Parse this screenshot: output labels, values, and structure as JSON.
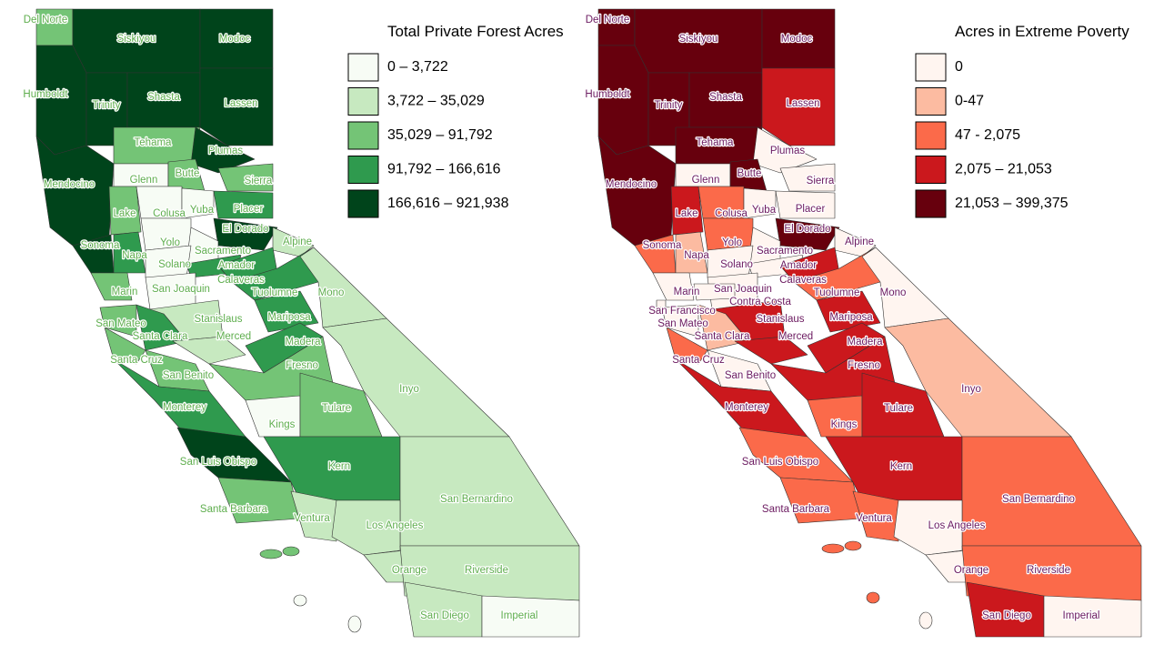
{
  "maps": [
    {
      "legend": {
        "title": "Total Private Forest Acres",
        "classes": [
          {
            "label": "0 – 3,722",
            "color": "#f7fcf5"
          },
          {
            "label": "3,722 – 35,029",
            "color": "#c7e9c0"
          },
          {
            "label": "35,029 – 91,792",
            "color": "#74c476"
          },
          {
            "label": "91,792 – 166,616",
            "color": "#2f9a4e"
          },
          {
            "label": "166,616 – 921,938",
            "color": "#00441b"
          }
        ]
      },
      "counties": [
        {
          "name": "Del Norte",
          "color": "#74c476"
        },
        {
          "name": "Siskiyou",
          "color": "#00441b"
        },
        {
          "name": "Modoc",
          "color": "#00441b"
        },
        {
          "name": "Humboldt",
          "color": "#00441b"
        },
        {
          "name": "Trinity",
          "color": "#00441b"
        },
        {
          "name": "Shasta",
          "color": "#00441b"
        },
        {
          "name": "Lassen",
          "color": "#00441b"
        },
        {
          "name": "Tehama",
          "color": "#74c476"
        },
        {
          "name": "Plumas",
          "color": "#00441b"
        },
        {
          "name": "Sierra",
          "color": "#74c476"
        },
        {
          "name": "Glenn",
          "color": "#f7fcf5"
        },
        {
          "name": "Butte",
          "color": "#74c476"
        },
        {
          "name": "Mendocino",
          "color": "#00441b"
        },
        {
          "name": "Lake",
          "color": "#74c476"
        },
        {
          "name": "Colusa",
          "color": "#f7fcf5"
        },
        {
          "name": "Yuba",
          "color": "#f7fcf5"
        },
        {
          "name": "Placer",
          "color": "#2f9a4e"
        },
        {
          "name": "El Dorado",
          "color": "#00441b"
        },
        {
          "name": "Sonoma",
          "color": "#00441b"
        },
        {
          "name": "Napa",
          "color": "#2f9a4e"
        },
        {
          "name": "Yolo",
          "color": "#f7fcf5"
        },
        {
          "name": "Sacramento",
          "color": "#f7fcf5"
        },
        {
          "name": "Solano",
          "color": "#f7fcf5"
        },
        {
          "name": "Alpine",
          "color": "#c7e9c0"
        },
        {
          "name": "Amador",
          "color": "#2f9a4e"
        },
        {
          "name": "Calaveras",
          "color": "#2f9a4e"
        },
        {
          "name": "Tuolumne",
          "color": "#2f9a4e"
        },
        {
          "name": "Mono",
          "color": "#c7e9c0"
        },
        {
          "name": "Marin",
          "color": "#74c476"
        },
        {
          "name": "San Joaquin",
          "color": "#f7fcf5"
        },
        {
          "name": "Stanislaus",
          "color": "#c7e9c0"
        },
        {
          "name": "Mariposa",
          "color": "#2f9a4e"
        },
        {
          "name": "San Mateo",
          "color": "#74c476"
        },
        {
          "name": "Santa Clara",
          "color": "#2f9a4e"
        },
        {
          "name": "Merced",
          "color": "#c7e9c0"
        },
        {
          "name": "Madera",
          "color": "#2f9a4e"
        },
        {
          "name": "Santa Cruz",
          "color": "#74c476"
        },
        {
          "name": "San Benito",
          "color": "#74c476"
        },
        {
          "name": "Fresno",
          "color": "#74c476"
        },
        {
          "name": "Monterey",
          "color": "#2f9a4e"
        },
        {
          "name": "Inyo",
          "color": "#c7e9c0"
        },
        {
          "name": "Kings",
          "color": "#f7fcf5"
        },
        {
          "name": "Tulare",
          "color": "#74c476"
        },
        {
          "name": "San Luis Obispo",
          "color": "#00441b"
        },
        {
          "name": "Kern",
          "color": "#2f9a4e"
        },
        {
          "name": "Santa Barbara",
          "color": "#74c476"
        },
        {
          "name": "Ventura",
          "color": "#c7e9c0"
        },
        {
          "name": "San Bernardino",
          "color": "#c7e9c0"
        },
        {
          "name": "Los Angeles",
          "color": "#c7e9c0"
        },
        {
          "name": "Orange",
          "color": "#c7e9c0"
        },
        {
          "name": "Riverside",
          "color": "#c7e9c0"
        },
        {
          "name": "San Diego",
          "color": "#c7e9c0"
        },
        {
          "name": "Imperial",
          "color": "#f7fcf5"
        }
      ]
    },
    {
      "legend": {
        "title": "Acres in Extreme Poverty",
        "classes": [
          {
            "label": "0",
            "color": "#fff5f0"
          },
          {
            "label": "0-47",
            "color": "#fcbba1"
          },
          {
            "label": "47 - 2,075",
            "color": "#fb6a4a"
          },
          {
            "label": "2,075 – 21,053",
            "color": "#cb181d"
          },
          {
            "label": "21,053 – 399,375",
            "color": "#67000d"
          }
        ]
      },
      "counties": [
        {
          "name": "Del Norte",
          "color": "#67000d"
        },
        {
          "name": "Siskiyou",
          "color": "#67000d"
        },
        {
          "name": "Modoc",
          "color": "#67000d"
        },
        {
          "name": "Humboldt",
          "color": "#67000d"
        },
        {
          "name": "Trinity",
          "color": "#67000d"
        },
        {
          "name": "Shasta",
          "color": "#67000d"
        },
        {
          "name": "Lassen",
          "color": "#cb181d"
        },
        {
          "name": "Tehama",
          "color": "#67000d"
        },
        {
          "name": "Plumas",
          "color": "#fff5f0"
        },
        {
          "name": "Sierra",
          "color": "#fff5f0"
        },
        {
          "name": "Glenn",
          "color": "#fff5f0"
        },
        {
          "name": "Butte",
          "color": "#67000d"
        },
        {
          "name": "Mendocino",
          "color": "#67000d"
        },
        {
          "name": "Lake",
          "color": "#cb181d"
        },
        {
          "name": "Colusa",
          "color": "#fb6a4a"
        },
        {
          "name": "Yuba",
          "color": "#fff5f0"
        },
        {
          "name": "Placer",
          "color": "#fff5f0"
        },
        {
          "name": "El Dorado",
          "color": "#67000d"
        },
        {
          "name": "Sonoma",
          "color": "#fb6a4a"
        },
        {
          "name": "Napa",
          "color": "#fcbba1"
        },
        {
          "name": "Yolo",
          "color": "#fb6a4a"
        },
        {
          "name": "Sacramento",
          "color": "#fff5f0"
        },
        {
          "name": "Solano",
          "color": "#fff5f0"
        },
        {
          "name": "Alpine",
          "color": "#fff5f0"
        },
        {
          "name": "Amador",
          "color": "#fff5f0"
        },
        {
          "name": "Calaveras",
          "color": "#cb181d"
        },
        {
          "name": "Tuolumne",
          "color": "#fb6a4a"
        },
        {
          "name": "Mono",
          "color": "#fff5f0"
        },
        {
          "name": "Marin",
          "color": "#fff5f0"
        },
        {
          "name": "San Joaquin",
          "color": "#fff5f0"
        },
        {
          "name": "Contra Costa",
          "color": "#fff5f0"
        },
        {
          "name": "San Francisco",
          "color": "#fff5f0"
        },
        {
          "name": "Stanislaus",
          "color": "#cb181d"
        },
        {
          "name": "Mariposa",
          "color": "#cb181d"
        },
        {
          "name": "San Mateo",
          "color": "#fff5f0"
        },
        {
          "name": "Santa Clara",
          "color": "#fcbba1"
        },
        {
          "name": "Merced",
          "color": "#cb181d"
        },
        {
          "name": "Madera",
          "color": "#cb181d"
        },
        {
          "name": "Santa Cruz",
          "color": "#fb6a4a"
        },
        {
          "name": "San Benito",
          "color": "#fff5f0"
        },
        {
          "name": "Fresno",
          "color": "#cb181d"
        },
        {
          "name": "Monterey",
          "color": "#cb181d"
        },
        {
          "name": "Inyo",
          "color": "#fcbba1"
        },
        {
          "name": "Kings",
          "color": "#fb6a4a"
        },
        {
          "name": "Tulare",
          "color": "#cb181d"
        },
        {
          "name": "San Luis Obispo",
          "color": "#fb6a4a"
        },
        {
          "name": "Kern",
          "color": "#cb181d"
        },
        {
          "name": "Santa Barbara",
          "color": "#fb6a4a"
        },
        {
          "name": "Ventura",
          "color": "#fb6a4a"
        },
        {
          "name": "San Bernardino",
          "color": "#fb6a4a"
        },
        {
          "name": "Los Angeles",
          "color": "#fff5f0"
        },
        {
          "name": "Orange",
          "color": "#fff5f0"
        },
        {
          "name": "Riverside",
          "color": "#fb6a4a"
        },
        {
          "name": "San Diego",
          "color": "#cb181d"
        },
        {
          "name": "Imperial",
          "color": "#fff5f0"
        }
      ]
    }
  ]
}
